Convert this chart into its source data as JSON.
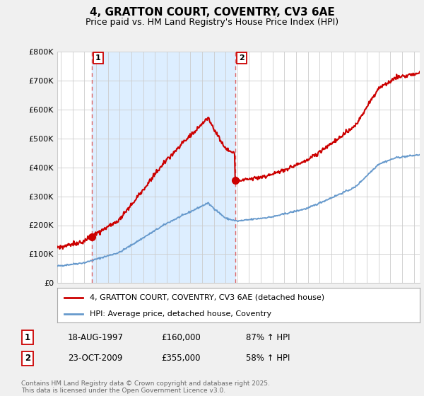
{
  "title": "4, GRATTON COURT, COVENTRY, CV3 6AE",
  "subtitle": "Price paid vs. HM Land Registry's House Price Index (HPI)",
  "ylim": [
    0,
    800000
  ],
  "yticks": [
    0,
    100000,
    200000,
    300000,
    400000,
    500000,
    600000,
    700000,
    800000
  ],
  "ytick_labels": [
    "£0",
    "£100K",
    "£200K",
    "£300K",
    "£400K",
    "£500K",
    "£600K",
    "£700K",
    "£800K"
  ],
  "xlim_start": 1994.7,
  "xlim_end": 2025.5,
  "sale1_x": 1997.63,
  "sale1_y": 160000,
  "sale2_x": 2009.81,
  "sale2_y": 355000,
  "sale1_label": "1",
  "sale2_label": "2",
  "line_color_red": "#cc0000",
  "line_color_blue": "#6699cc",
  "vline_color": "#dd6666",
  "shade_color": "#ddeeff",
  "legend_label_red": "4, GRATTON COURT, COVENTRY, CV3 6AE (detached house)",
  "legend_label_blue": "HPI: Average price, detached house, Coventry",
  "transaction1_num": "1",
  "transaction1_date": "18-AUG-1997",
  "transaction1_price": "£160,000",
  "transaction1_hpi": "87% ↑ HPI",
  "transaction2_num": "2",
  "transaction2_date": "23-OCT-2009",
  "transaction2_price": "£355,000",
  "transaction2_hpi": "58% ↑ HPI",
  "copyright_text": "Contains HM Land Registry data © Crown copyright and database right 2025.\nThis data is licensed under the Open Government Licence v3.0.",
  "background_color": "#f0f0f0",
  "plot_background": "#ffffff",
  "grid_color": "#cccccc",
  "title_fontsize": 11,
  "subtitle_fontsize": 9
}
